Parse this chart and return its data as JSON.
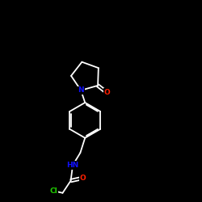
{
  "background_color": "#000000",
  "bond_color": "#ffffff",
  "atom_colors": {
    "N": "#1010ff",
    "O": "#ff2000",
    "Cl": "#20cc00",
    "C": "#ffffff"
  },
  "figsize": [
    2.5,
    2.5
  ],
  "dpi": 100,
  "lw": 1.3
}
